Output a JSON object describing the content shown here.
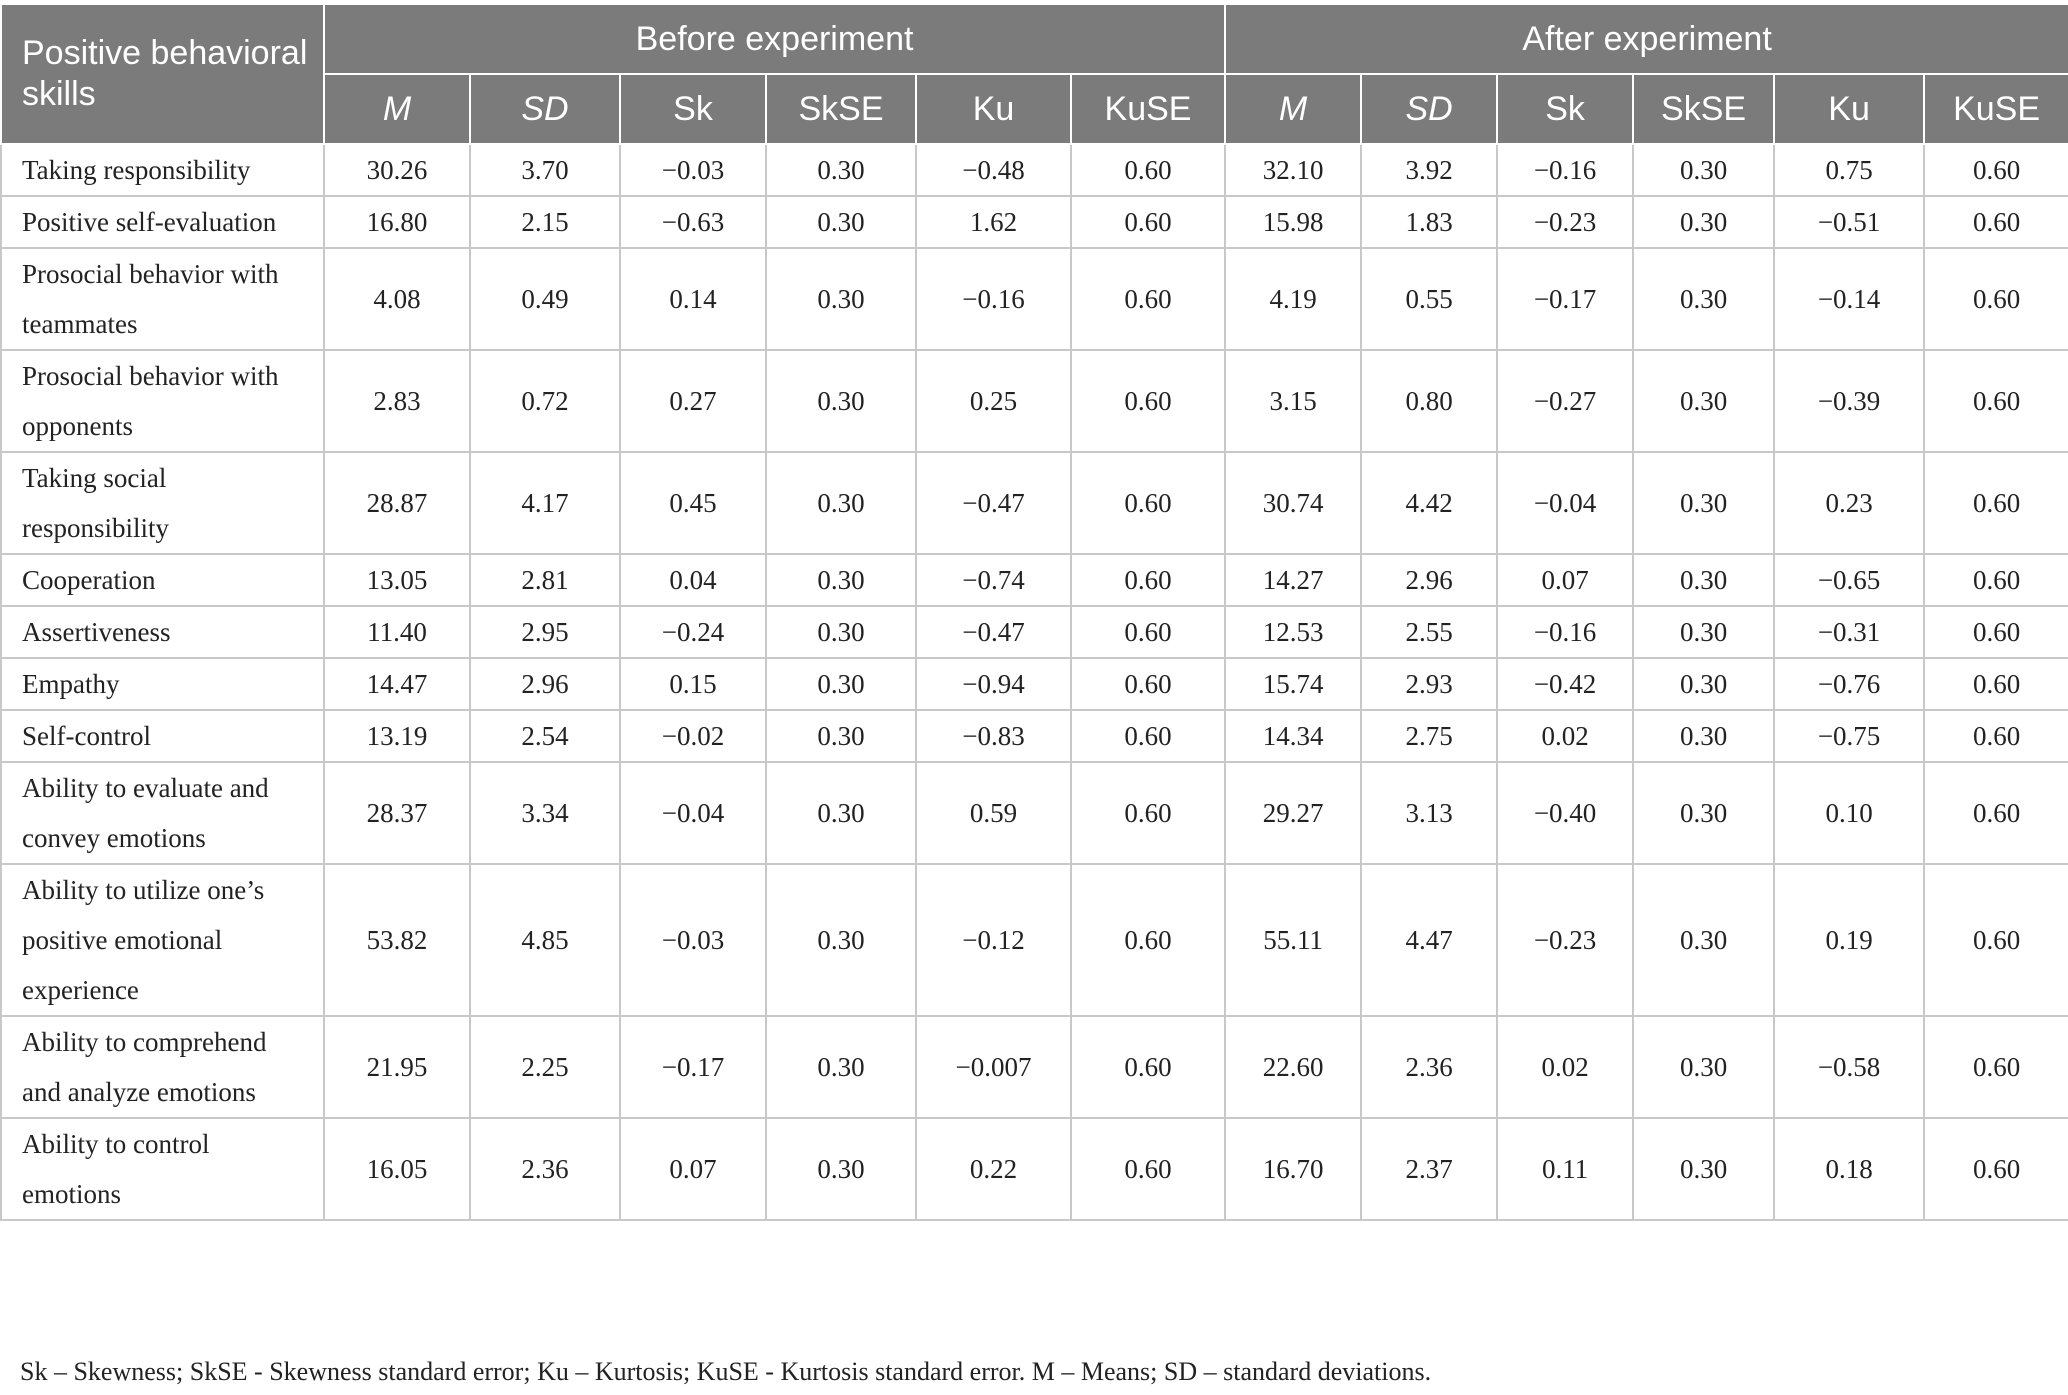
{
  "header": {
    "row_label": "Positive behavioral skills",
    "groups": [
      "Before experiment",
      "After experiment"
    ],
    "subcolumns": [
      "M",
      "SD",
      "Sk",
      "SkSE",
      "Ku",
      "KuSE",
      "M",
      "SD",
      "Sk",
      "SkSE",
      "Ku",
      "KuSE"
    ]
  },
  "rows": [
    {
      "label": "Taking responsibility",
      "values": [
        "30.26",
        "3.70",
        "−0.03",
        "0.30",
        "−0.48",
        "0.60",
        "32.10",
        "3.92",
        "−0.16",
        "0.30",
        "0.75",
        "0.60"
      ]
    },
    {
      "label": "Positive self-evaluation",
      "values": [
        "16.80",
        "2.15",
        "−0.63",
        "0.30",
        "1.62",
        "0.60",
        "15.98",
        "1.83",
        "−0.23",
        "0.30",
        "−0.51",
        "0.60"
      ]
    },
    {
      "label": "Prosocial behavior with teammates",
      "values": [
        "4.08",
        "0.49",
        "0.14",
        "0.30",
        "−0.16",
        "0.60",
        "4.19",
        "0.55",
        "−0.17",
        "0.30",
        "−0.14",
        "0.60"
      ]
    },
    {
      "label": "Prosocial behavior with opponents",
      "values": [
        "2.83",
        "0.72",
        "0.27",
        "0.30",
        "0.25",
        "0.60",
        "3.15",
        "0.80",
        "−0.27",
        "0.30",
        "−0.39",
        "0.60"
      ]
    },
    {
      "label": "Taking social responsibility",
      "values": [
        "28.87",
        "4.17",
        "0.45",
        "0.30",
        "−0.47",
        "0.60",
        "30.74",
        "4.42",
        "−0.04",
        "0.30",
        "0.23",
        "0.60"
      ]
    },
    {
      "label": "Cooperation",
      "values": [
        "13.05",
        "2.81",
        "0.04",
        "0.30",
        "−0.74",
        "0.60",
        "14.27",
        "2.96",
        "0.07",
        "0.30",
        "−0.65",
        "0.60"
      ]
    },
    {
      "label": "Assertiveness",
      "values": [
        "11.40",
        "2.95",
        "−0.24",
        "0.30",
        "−0.47",
        "0.60",
        "12.53",
        "2.55",
        "−0.16",
        "0.30",
        "−0.31",
        "0.60"
      ]
    },
    {
      "label": "Empathy",
      "values": [
        "14.47",
        "2.96",
        "0.15",
        "0.30",
        "−0.94",
        "0.60",
        "15.74",
        "2.93",
        "−0.42",
        "0.30",
        "−0.76",
        "0.60"
      ]
    },
    {
      "label": "Self-control",
      "values": [
        "13.19",
        "2.54",
        "−0.02",
        "0.30",
        "−0.83",
        "0.60",
        "14.34",
        "2.75",
        "0.02",
        "0.30",
        "−0.75",
        "0.60"
      ]
    },
    {
      "label": "Ability to evaluate and convey emotions",
      "values": [
        "28.37",
        "3.34",
        "−0.04",
        "0.30",
        "0.59",
        "0.60",
        "29.27",
        "3.13",
        "−0.40",
        "0.30",
        "0.10",
        "0.60"
      ]
    },
    {
      "label": "Ability to utilize one’s positive emotional experience",
      "values": [
        "53.82",
        "4.85",
        "−0.03",
        "0.30",
        "−0.12",
        "0.60",
        "55.11",
        "4.47",
        "−0.23",
        "0.30",
        "0.19",
        "0.60"
      ]
    },
    {
      "label": "Ability to comprehend and analyze emotions",
      "values": [
        "21.95",
        "2.25",
        "−0.17",
        "0.30",
        "−0.007",
        "0.60",
        "22.60",
        "2.36",
        "0.02",
        "0.30",
        "−0.58",
        "0.60"
      ]
    },
    {
      "label": "Ability to control emotions",
      "values": [
        "16.05",
        "2.36",
        "0.07",
        "0.30",
        "0.22",
        "0.60",
        "16.70",
        "2.37",
        "0.11",
        "0.30",
        "0.18",
        "0.60"
      ]
    }
  ],
  "footnote": "Sk – Skewness; SkSE - Skewness standard error; Ku – Kurtosis; KuSE - Kurtosis standard error. M – Means; SD – standard deviations.",
  "colors": {
    "header_bg": "#7b7b7b",
    "header_text": "#ffffff",
    "grid": "#c8c8c8"
  }
}
